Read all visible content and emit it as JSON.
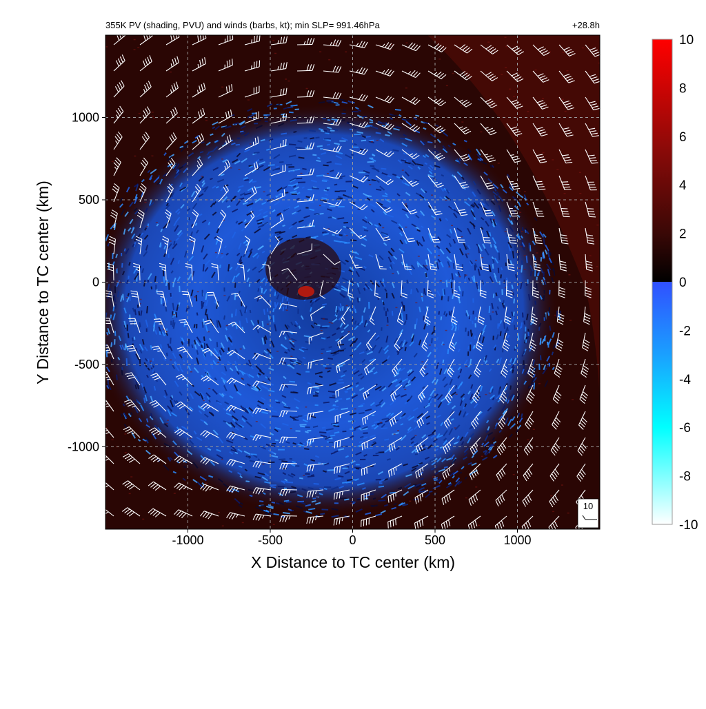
{
  "header": {
    "title": "355K PV (shading, PVU) and winds (barbs, kt); min SLP= 991.46hPa",
    "time_label": "+28.8h"
  },
  "reference_barb": {
    "label": "10"
  },
  "colors": {
    "background_positive": "#2a0604",
    "negative_pv": "#2f6bff",
    "gridline": "#9a9a9a",
    "barb": "#ffffff"
  },
  "chart_data": {
    "type": "heatmap",
    "title": "355K PV (shading, PVU) and winds (barbs, kt); min SLP= 991.46hPa",
    "annotation": "+28.8h",
    "xlabel": "X Distance to TC center (km)",
    "ylabel": "Y Distance to TC center (km)",
    "xlim": [
      -1500,
      1500
    ],
    "ylim": [
      -1500,
      1500
    ],
    "x_ticks": [
      -1000,
      -500,
      0,
      500,
      1000
    ],
    "x_tick_labels": [
      "-1000",
      "-500",
      "0",
      "500",
      "1000"
    ],
    "y_ticks": [
      -1000,
      -500,
      0,
      500,
      1000
    ],
    "y_tick_labels": [
      "-1000",
      "-500",
      "0",
      "500",
      "1000"
    ],
    "grid": true,
    "colorbar": {
      "min": -10,
      "max": 10,
      "ticks": [
        10,
        8,
        6,
        4,
        2,
        0,
        -2,
        -4,
        -6,
        -8,
        -10
      ],
      "tick_labels": [
        "10",
        "8",
        "6",
        "4",
        "2",
        "0",
        "-2",
        "-4",
        "-6",
        "-8",
        "-10"
      ],
      "stops": [
        {
          "value": 10,
          "color": "#ff0000"
        },
        {
          "value": 5,
          "color": "#8c0a08"
        },
        {
          "value": 2,
          "color": "#3a0806"
        },
        {
          "value": 0,
          "color": "#000000"
        },
        {
          "value": -0.01,
          "color": "#3050ff"
        },
        {
          "value": -3,
          "color": "#1aa0ff"
        },
        {
          "value": -6,
          "color": "#00ffff"
        },
        {
          "value": -10,
          "color": "#ffffff"
        }
      ]
    },
    "wind_field": {
      "description_units": "kt",
      "reference_speed": 10,
      "circulation": "cyclonic",
      "max_speed_kt": 40
    }
  }
}
